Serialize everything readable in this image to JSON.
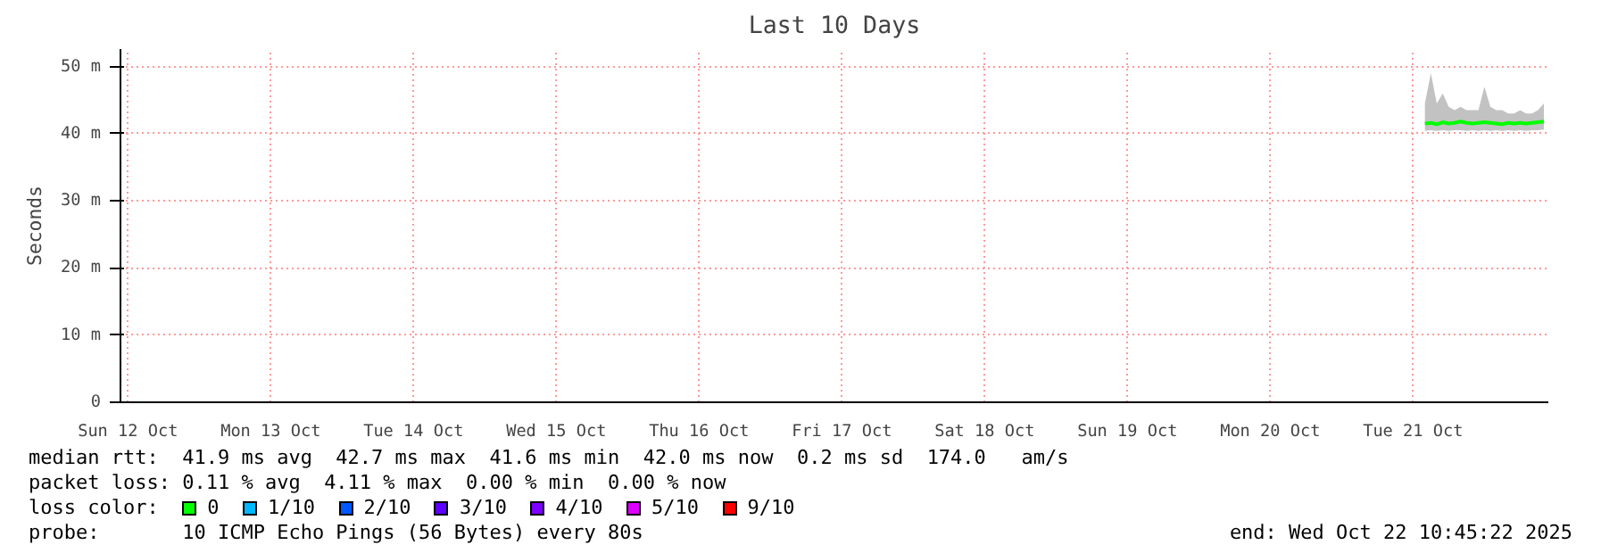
{
  "chart_data": {
    "type": "line",
    "title": "Last 10 Days",
    "ylabel": "Seconds",
    "x": [
      "2025-10-21T14:00",
      "2025-10-21T15:00",
      "2025-10-21T16:00",
      "2025-10-21T17:00",
      "2025-10-21T18:00",
      "2025-10-21T19:00",
      "2025-10-21T20:00",
      "2025-10-21T21:00",
      "2025-10-21T22:00",
      "2025-10-21T23:00",
      "2025-10-22T00:00",
      "2025-10-22T01:00",
      "2025-10-22T02:00",
      "2025-10-22T03:00",
      "2025-10-22T04:00",
      "2025-10-22T05:00",
      "2025-10-22T06:00",
      "2025-10-22T07:00",
      "2025-10-22T08:00",
      "2025-10-22T09:00",
      "2025-10-22T10:00"
    ],
    "series": [
      {
        "name": "0",
        "color": "#00ff00",
        "values": [
          41.5,
          41.6,
          41.4,
          41.7,
          41.5,
          41.6,
          41.8,
          41.6,
          41.5,
          41.6,
          41.7,
          41.6,
          41.5,
          41.4,
          41.6,
          41.5,
          41.6,
          41.5,
          41.6,
          41.7,
          41.8
        ],
        "lower": [
          40.4,
          40.5,
          40.4,
          40.5,
          40.4,
          40.5,
          40.5,
          40.4,
          40.5,
          40.4,
          40.5,
          40.4,
          40.5,
          40.4,
          40.5,
          40.4,
          40.5,
          40.4,
          40.5,
          40.5,
          40.6
        ],
        "upper": [
          44.5,
          49,
          44.5,
          46,
          44,
          43.5,
          44,
          43.5,
          43.5,
          43.5,
          47,
          44,
          43.5,
          43.5,
          43,
          43,
          43.5,
          43,
          43,
          43.5,
          44.5
        ]
      },
      {
        "name": "1/10",
        "color": "#00b8ff",
        "values": [
          null,
          null,
          null,
          null,
          null,
          null,
          null,
          null,
          null,
          null,
          null,
          null,
          null,
          null,
          null,
          null,
          null,
          null,
          null,
          null,
          null
        ]
      },
      {
        "name": "2/10",
        "color": "#0059ff",
        "values": [
          null,
          null,
          null,
          null,
          null,
          null,
          null,
          null,
          null,
          null,
          null,
          null,
          null,
          null,
          null,
          null,
          null,
          null,
          null,
          null,
          null
        ]
      },
      {
        "name": "3/10",
        "color": "#5e00ff",
        "values": [
          null,
          null,
          null,
          null,
          null,
          null,
          null,
          null,
          null,
          null,
          null,
          null,
          null,
          null,
          null,
          null,
          null,
          null,
          null,
          null,
          null
        ]
      },
      {
        "name": "4/10",
        "color": "#7e00ff",
        "values": [
          null,
          null,
          null,
          null,
          null,
          null,
          null,
          null,
          null,
          null,
          null,
          null,
          null,
          null,
          null,
          null,
          null,
          null,
          null,
          null,
          null
        ]
      },
      {
        "name": "5/10",
        "color": "#dd00ff",
        "values": [
          null,
          null,
          null,
          null,
          null,
          null,
          null,
          null,
          null,
          null,
          null,
          null,
          null,
          null,
          null,
          null,
          null,
          null,
          null,
          null,
          null
        ]
      },
      {
        "name": "9/10",
        "color": "#ff0000",
        "values": [
          null,
          null,
          null,
          null,
          null,
          null,
          null,
          null,
          null,
          null,
          null,
          null,
          null,
          null,
          null,
          null,
          null,
          null,
          null,
          null,
          null
        ]
      }
    ],
    "legend_title": "loss color:",
    "legend": "bottom",
    "xlim": [
      "2025-10-12T10:45",
      "2025-10-22T10:45"
    ],
    "xticks": [
      {
        "value": "2025-10-12T12:00",
        "label": "Sun 12 Oct"
      },
      {
        "value": "2025-10-13T12:00",
        "label": "Mon 13 Oct"
      },
      {
        "value": "2025-10-14T12:00",
        "label": "Tue 14 Oct"
      },
      {
        "value": "2025-10-15T12:00",
        "label": "Wed 15 Oct"
      },
      {
        "value": "2025-10-16T12:00",
        "label": "Thu 16 Oct"
      },
      {
        "value": "2025-10-17T12:00",
        "label": "Fri 17 Oct"
      },
      {
        "value": "2025-10-18T12:00",
        "label": "Sat 18 Oct"
      },
      {
        "value": "2025-10-19T12:00",
        "label": "Sun 19 Oct"
      },
      {
        "value": "2025-10-20T12:00",
        "label": "Mon 20 Oct"
      },
      {
        "value": "2025-10-21T12:00",
        "label": "Tue 21 Oct"
      }
    ],
    "ylim": [
      0,
      52.6
    ],
    "yticks": [
      0,
      {
        "value": 10,
        "label": "10 m"
      },
      {
        "value": 20,
        "label": "20 m"
      },
      {
        "value": 30,
        "label": "30 m"
      },
      {
        "value": 40,
        "label": "40 m"
      },
      {
        "value": 50,
        "label": "50 m"
      }
    ],
    "grid": true,
    "annotations": [
      "median rtt:  41.9 ms avg  42.7 ms max  41.6 ms min  42.0 ms now  0.2 ms sd  174.0   am/s",
      "packet loss: 0.11 % avg  4.11 % max  0.00 % min  0.00 % now",
      "probe:       10 ICMP Echo Pings (56 Bytes) every 80s",
      "end: Wed Oct 22 10:45:22 2025"
    ]
  }
}
